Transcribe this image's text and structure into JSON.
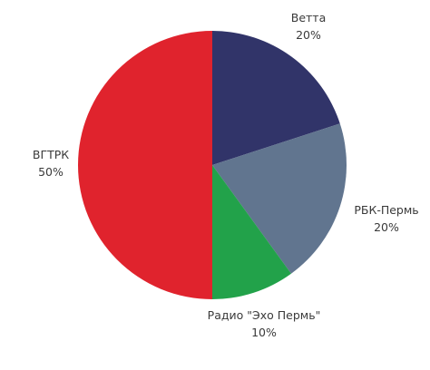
{
  "chart_data": {
    "type": "pie",
    "start_angle_deg": 0,
    "direction": "clockwise",
    "slices": [
      {
        "label": "Ветта",
        "value": 20,
        "value_label": "20%",
        "color": "#313469"
      },
      {
        "label": "РБК-Пермь",
        "value": 20,
        "value_label": "20%",
        "color": "#61758f"
      },
      {
        "label": "Радио \"Эхо Пермь\"",
        "value": 10,
        "value_label": "10%",
        "color": "#22a24a"
      },
      {
        "label": "ВГТРК",
        "value": 50,
        "value_label": "50%",
        "color": "#e0232d"
      }
    ]
  }
}
